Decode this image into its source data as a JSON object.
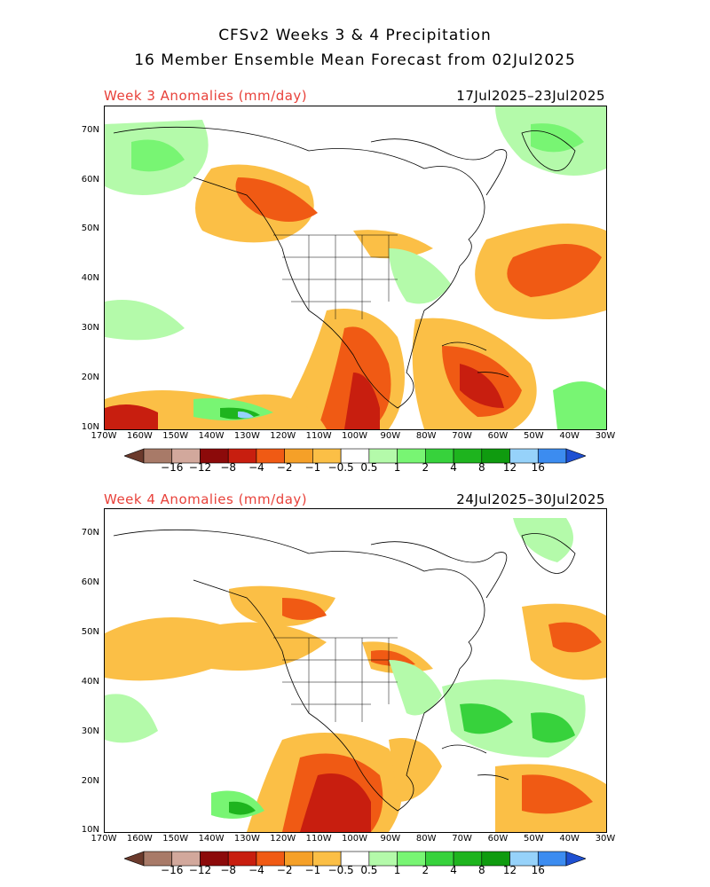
{
  "header": {
    "title_line1": "CFSv2 Weeks 3 & 4 Precipitation",
    "title_line2": "16 Member Ensemble Mean Forecast from 02Jul2025"
  },
  "panels": [
    {
      "label": "Week 3 Anomalies (mm/day)",
      "dates": "17Jul2025–23Jul2025"
    },
    {
      "label": "Week 4 Anomalies (mm/day)",
      "dates": "24Jul2025–30Jul2025"
    }
  ],
  "lat_labels": [
    "70N",
    "60N",
    "50N",
    "40N",
    "30N",
    "20N",
    "10N"
  ],
  "lon_labels": [
    "170W",
    "160W",
    "150W",
    "140W",
    "130W",
    "120W",
    "110W",
    "100W",
    "90W",
    "80W",
    "70W",
    "60W",
    "50W",
    "40W",
    "30W"
  ],
  "colorbar": {
    "labels": [
      "−16",
      "−12",
      "−8",
      "−4",
      "−2",
      "−1",
      "−0.5",
      "0.5",
      "1",
      "2",
      "4",
      "8",
      "12",
      "16"
    ],
    "colors": [
      "#6b3a2c",
      "#a87a68",
      "#d2a89c",
      "#8c0a0a",
      "#c81e0f",
      "#f05a14",
      "#f5a028",
      "#fbbf46",
      "#ffffff",
      "#b4faaa",
      "#78f573",
      "#37d23c",
      "#1eb41e",
      "#0f9b0f",
      "#96d2fa",
      "#3c8cf0",
      "#1e50d2"
    ]
  }
}
